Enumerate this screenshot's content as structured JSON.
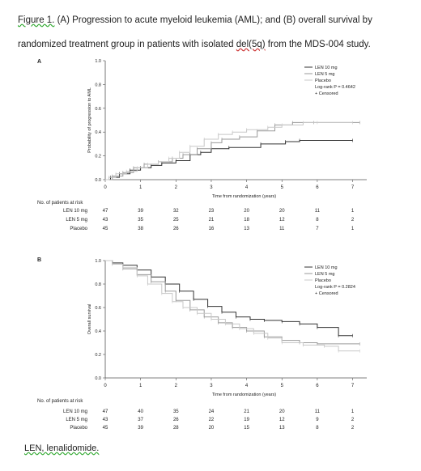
{
  "caption": {
    "figure_label": "Figure 1.",
    "text_before_gene": "(A) Progression to acute myeloid leukemia (AML); and (B) overall survival by randomized treatment group in patients with isolated",
    "gene": "del(5q)",
    "text_after_gene": "from the MDS-004 study."
  },
  "footnote": "LEN, lenalidomide.",
  "colors": {
    "LEN 10 mg": "#333333",
    "LEN 5 mg": "#9a9a9a",
    "Placebo": "#c8c8c8"
  },
  "chart_data": [
    {
      "panel_label": "A",
      "type": "line",
      "step": true,
      "ylabel": "Probability of progression to AML",
      "xlabel": "Time from randomization (years)",
      "xlim": [
        0,
        7.4
      ],
      "ylim": [
        0,
        1.0
      ],
      "xticks": [
        0,
        1,
        2,
        3,
        4,
        5,
        6,
        7
      ],
      "yticks": [
        0.0,
        0.2,
        0.4,
        0.6,
        0.8,
        1.0
      ],
      "ytick_labels": [
        "0.0",
        "0.2",
        "0.4",
        "0.6",
        "0.8",
        "1.0"
      ],
      "legend": [
        "LEN 10 mg",
        "LEN 5 mg",
        "Placebo",
        "Log-rank P = 0.4642",
        "+ Censored"
      ],
      "legend_position": "top-right",
      "series": [
        {
          "name": "LEN 10 mg",
          "x": [
            0,
            0.15,
            0.4,
            0.7,
            1.0,
            1.3,
            1.6,
            2.0,
            2.4,
            2.7,
            3.0,
            3.5,
            4.4,
            5.1,
            5.5,
            7.0
          ],
          "y": [
            0,
            0.02,
            0.05,
            0.08,
            0.1,
            0.12,
            0.14,
            0.16,
            0.21,
            0.23,
            0.26,
            0.27,
            0.3,
            0.32,
            0.33,
            0.33
          ]
        },
        {
          "name": "LEN 5 mg",
          "x": [
            0,
            0.2,
            0.5,
            0.8,
            1.1,
            1.5,
            1.9,
            2.2,
            2.6,
            3.0,
            3.3,
            3.8,
            4.3,
            4.8,
            5.3,
            5.9,
            7.2
          ],
          "y": [
            0,
            0.03,
            0.06,
            0.1,
            0.13,
            0.15,
            0.18,
            0.21,
            0.26,
            0.31,
            0.34,
            0.36,
            0.41,
            0.46,
            0.48,
            0.48,
            0.48
          ]
        },
        {
          "name": "Placebo",
          "x": [
            0,
            0.1,
            0.3,
            0.6,
            0.9,
            1.2,
            1.5,
            1.8,
            2.1,
            2.4,
            2.8,
            3.2,
            3.6,
            4.0,
            4.6,
            5.0,
            5.6,
            6.0,
            7.0
          ],
          "y": [
            0,
            0.02,
            0.05,
            0.07,
            0.1,
            0.13,
            0.15,
            0.18,
            0.23,
            0.28,
            0.34,
            0.38,
            0.4,
            0.42,
            0.44,
            0.46,
            0.48,
            0.48,
            0.48
          ]
        }
      ],
      "risk_table": {
        "title": "No. of patients at risk",
        "times": [
          0,
          1,
          2,
          3,
          4,
          5,
          6,
          7
        ],
        "rows": [
          {
            "name": "LEN 10 mg",
            "values": [
              "47",
              "39",
              "32",
              "23",
              "20",
              "20",
              "11",
              "1"
            ]
          },
          {
            "name": "LEN 5 mg",
            "values": [
              "43",
              "35",
              "25",
              "21",
              "18",
              "12",
              "8",
              "2"
            ]
          },
          {
            "name": "Placebo",
            "values": [
              "45",
              "38",
              "26",
              "16",
              "13",
              "11",
              "7",
              "1"
            ]
          }
        ]
      }
    },
    {
      "panel_label": "B",
      "type": "line",
      "step": true,
      "ylabel": "Overall survival",
      "xlabel": "Time from randomization (years)",
      "xlim": [
        0,
        7.4
      ],
      "ylim": [
        0,
        1.0
      ],
      "xticks": [
        0,
        1,
        2,
        3,
        4,
        5,
        6,
        7
      ],
      "yticks": [
        0.0,
        0.2,
        0.4,
        0.6,
        0.8,
        1.0
      ],
      "ytick_labels": [
        "0.0",
        "0.2",
        "0.4",
        "0.6",
        "0.8",
        "1.0"
      ],
      "legend": [
        "LEN 10 mg",
        "LEN 5 mg",
        "Placebo",
        "Log-rank P = 0.2824",
        "+ Censored"
      ],
      "legend_position": "top-right",
      "series": [
        {
          "name": "LEN 10 mg",
          "x": [
            0,
            0.2,
            0.5,
            0.9,
            1.3,
            1.7,
            2.1,
            2.5,
            2.9,
            3.3,
            3.7,
            4.1,
            4.5,
            5.0,
            5.5,
            6.0,
            6.6,
            7.0
          ],
          "y": [
            1.0,
            0.98,
            0.96,
            0.92,
            0.86,
            0.8,
            0.74,
            0.67,
            0.61,
            0.56,
            0.52,
            0.5,
            0.49,
            0.48,
            0.46,
            0.43,
            0.36,
            0.36
          ]
        },
        {
          "name": "LEN 5 mg",
          "x": [
            0,
            0.2,
            0.5,
            0.9,
            1.3,
            1.7,
            2.0,
            2.4,
            2.8,
            3.2,
            3.6,
            4.0,
            4.5,
            5.0,
            5.5,
            6.0,
            7.2
          ],
          "y": [
            1.0,
            0.97,
            0.93,
            0.88,
            0.82,
            0.74,
            0.66,
            0.58,
            0.52,
            0.47,
            0.43,
            0.4,
            0.35,
            0.32,
            0.3,
            0.29,
            0.29
          ]
        },
        {
          "name": "Placebo",
          "x": [
            0,
            0.2,
            0.5,
            0.9,
            1.2,
            1.6,
            1.9,
            2.2,
            2.6,
            3.0,
            3.4,
            3.8,
            4.2,
            4.6,
            5.0,
            5.6,
            6.2,
            6.6,
            7.2
          ],
          "y": [
            1.0,
            0.97,
            0.94,
            0.87,
            0.8,
            0.72,
            0.65,
            0.6,
            0.55,
            0.5,
            0.46,
            0.42,
            0.38,
            0.34,
            0.3,
            0.28,
            0.27,
            0.23,
            0.23
          ]
        }
      ],
      "risk_table": {
        "title": "No. of patients at risk",
        "times": [
          0,
          1,
          2,
          3,
          4,
          5,
          6,
          7
        ],
        "rows": [
          {
            "name": "LEN 10 mg",
            "values": [
              "47",
              "40",
              "35",
              "24",
              "21",
              "20",
              "11",
              "1"
            ]
          },
          {
            "name": "LEN 5 mg",
            "values": [
              "43",
              "37",
              "26",
              "22",
              "19",
              "12",
              "9",
              "2"
            ]
          },
          {
            "name": "Placebo",
            "values": [
              "45",
              "39",
              "28",
              "20",
              "15",
              "13",
              "8",
              "2"
            ]
          }
        ]
      }
    }
  ]
}
